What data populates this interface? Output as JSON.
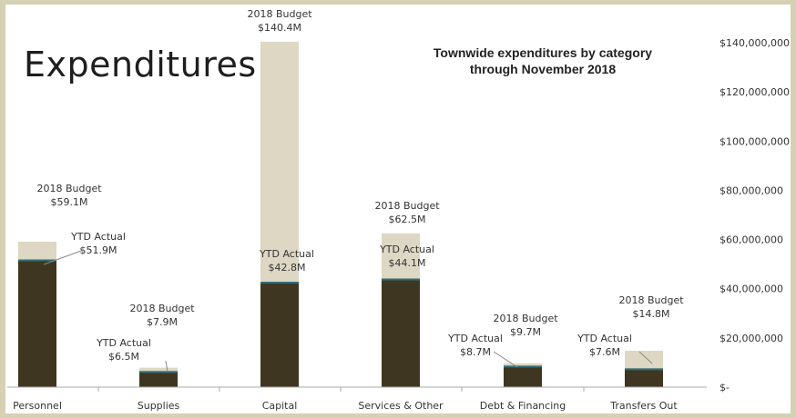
{
  "heading": "Expenditures",
  "chart_data": {
    "type": "bar",
    "title_line1": "Townwide expenditures by category",
    "title_line2": "through November 2018",
    "categories": [
      "Personnel",
      "Supplies",
      "Capital",
      "Services & Other",
      "Debt & Financing",
      "Transfers Out"
    ],
    "series": [
      {
        "name": "2018 Budget",
        "values": [
          59100000,
          7900000,
          140400000,
          62500000,
          9700000,
          14800000
        ],
        "labels": [
          "$59.1M",
          "$7.9M",
          "$140.4M",
          "$62.5M",
          "$9.7M",
          "$14.8M"
        ],
        "color": "#ddd7c3"
      },
      {
        "name": "YTD Actual",
        "values": [
          51900000,
          6500000,
          42800000,
          44100000,
          8700000,
          7600000
        ],
        "labels": [
          "$51.9M",
          "$6.5M",
          "$42.8M",
          "$44.1M",
          "$8.7M",
          "$7.6M"
        ],
        "color": "#3e3620"
      }
    ],
    "ylim": [
      0,
      140000000
    ],
    "yticks": [
      0,
      20000000,
      40000000,
      60000000,
      80000000,
      100000000,
      120000000,
      140000000
    ],
    "ytick_labels": [
      "$-",
      "$20,000,000",
      "$40,000,000",
      "$60,000,000",
      "$80,000,000",
      "$100,000,000",
      "$120,000,000",
      "$140,000,000"
    ],
    "y_axis_position": "right",
    "grid": false,
    "legend": "none"
  }
}
